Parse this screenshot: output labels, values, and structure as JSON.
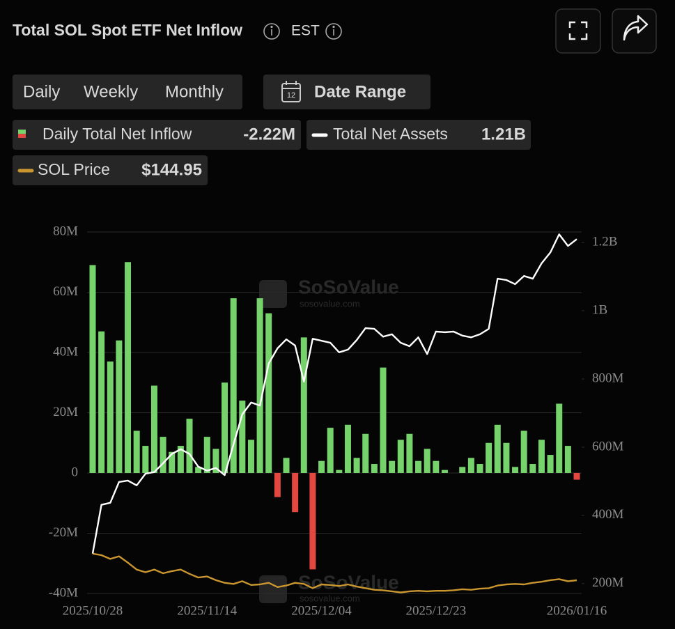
{
  "header": {
    "title": "Total SOL Spot ETF Net Inflow",
    "timezone": "EST"
  },
  "tabs": {
    "items": [
      "Daily",
      "Weekly",
      "Monthly"
    ],
    "active": 0
  },
  "date_range": {
    "label": "Date Range",
    "calendar_day": "12"
  },
  "watermark": {
    "name": "SoSoValue",
    "url": "sosovalue.com"
  },
  "chart_data": {
    "type": "bar",
    "categories": [
      "2025/10/28",
      null,
      null,
      null,
      null,
      null,
      null,
      null,
      null,
      null,
      null,
      null,
      null,
      "2025/11/14",
      null,
      null,
      null,
      null,
      null,
      null,
      null,
      null,
      null,
      null,
      null,
      null,
      "2025/12/04",
      null,
      null,
      null,
      null,
      null,
      null,
      null,
      null,
      null,
      null,
      null,
      null,
      "2025/12/23",
      null,
      null,
      null,
      null,
      null,
      null,
      null,
      null,
      null,
      null,
      null,
      null,
      null,
      null,
      null,
      "2026/01/16"
    ],
    "series": [
      {
        "name": "Daily Total Net Inflow",
        "type": "bar",
        "color": "#76d36c",
        "negative_color": "#e2483f",
        "values": [
          69000000,
          47000000,
          37000000,
          44000000,
          70000000,
          14000000,
          9000000,
          29000000,
          12000000,
          7000000,
          9000000,
          18000000,
          2000000,
          12000000,
          8000000,
          30000000,
          58000000,
          24000000,
          11000000,
          58000000,
          53000000,
          -8000000,
          5000000,
          -13000000,
          45000000,
          -32000000,
          4000000,
          15000000,
          1000000,
          16000000,
          5000000,
          13000000,
          3000000,
          35000000,
          4000000,
          11000000,
          13000000,
          4000000,
          8000000,
          4000000,
          1000000,
          0,
          2000000,
          5000000,
          3000000,
          10000000,
          16000000,
          10000000,
          2000000,
          14000000,
          3000000,
          11000000,
          6000000,
          23000000,
          9000000,
          -2220000
        ]
      },
      {
        "name": "Total Net Assets",
        "type": "line",
        "axis": "y2",
        "color": "#ffffff",
        "values": [
          288000000,
          431000000,
          437000000,
          498000000,
          502000000,
          488000000,
          522000000,
          527000000,
          553000000,
          580000000,
          594000000,
          580000000,
          543000000,
          531000000,
          539000000,
          518000000,
          608000000,
          696000000,
          731000000,
          722000000,
          845000000,
          890000000,
          916000000,
          898000000,
          792000000,
          918000000,
          912000000,
          906000000,
          878000000,
          886000000,
          914000000,
          949000000,
          947000000,
          924000000,
          931000000,
          906000000,
          896000000,
          922000000,
          873000000,
          939000000,
          937000000,
          939000000,
          927000000,
          922000000,
          931000000,
          947000000,
          1094000000,
          1090000000,
          1078000000,
          1102000000,
          1094000000,
          1139000000,
          1171000000,
          1224000000,
          1190000000,
          1210000000
        ]
      },
      {
        "name": "SOL Price",
        "type": "line",
        "axis": "y3",
        "color": "#c9962f",
        "values": [
          195,
          192,
          185,
          190,
          178,
          165,
          160,
          165,
          158,
          162,
          165,
          157,
          150,
          152,
          145,
          140,
          138,
          143,
          136,
          137,
          140,
          132,
          135,
          140,
          138,
          130,
          137,
          136,
          134,
          137,
          133,
          130,
          127,
          126,
          124,
          122,
          124,
          125,
          124,
          125,
          125,
          126,
          128,
          127,
          129,
          130,
          135,
          137,
          138,
          137,
          140,
          142,
          145,
          147,
          143,
          144.95
        ]
      }
    ],
    "legend_values": [
      "-2.22M",
      "1.21B",
      "$144.95"
    ],
    "ylim": [
      -40000000,
      80000000
    ],
    "yticks": [
      {
        "value": -40000000,
        "label": "-40M"
      },
      {
        "value": -20000000,
        "label": "-20M"
      },
      0,
      {
        "value": 20000000,
        "label": "20M"
      },
      {
        "value": 40000000,
        "label": "40M"
      },
      {
        "value": 60000000,
        "label": "60M"
      },
      {
        "value": 80000000,
        "label": "80M"
      }
    ],
    "y2lim": [
      171000000,
      1231000000
    ],
    "y2ticks": [
      {
        "value": 200000000,
        "label": "200M"
      },
      {
        "value": 400000000,
        "label": "400M"
      },
      {
        "value": 600000000,
        "label": "600M"
      },
      {
        "value": 800000000,
        "label": "800M"
      },
      {
        "value": 1000000000,
        "label": "1B"
      },
      {
        "value": 1200000000,
        "label": "1.2B"
      }
    ],
    "y3lim": [
      120,
      800
    ],
    "grid": true
  }
}
